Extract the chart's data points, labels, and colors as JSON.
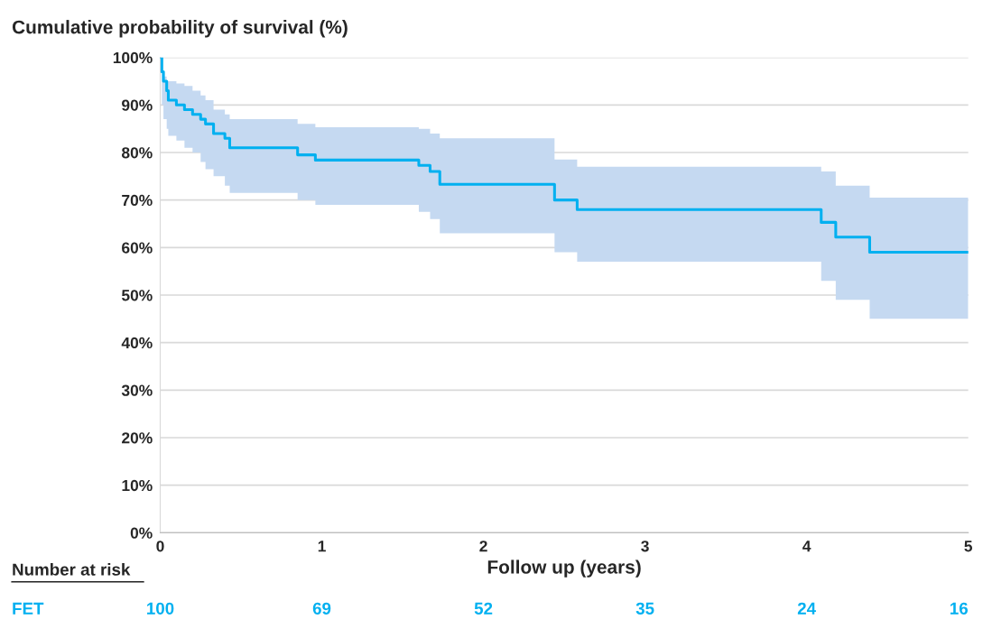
{
  "chart_data": {
    "type": "step",
    "title": "Cumulative probability of survival (%)",
    "xlabel": "Follow up (years)",
    "series": [
      {
        "color": "#00b0f0",
        "x": [
          0,
          0.01,
          0.02,
          0.04,
          0.05,
          0.1,
          0.15,
          0.2,
          0.25,
          0.28,
          0.33,
          0.4,
          0.43,
          0.85,
          0.96,
          1.6,
          1.67,
          1.73,
          2.44,
          2.58,
          4.09,
          4.18,
          4.39,
          5
        ],
        "values": [
          100,
          97,
          95,
          93,
          91,
          90,
          89,
          88,
          87,
          86,
          84,
          83,
          81,
          79.5,
          78.4,
          77.3,
          76,
          73.3,
          70,
          68,
          65.3,
          62.2,
          59,
          59
        ],
        "upper": [
          100,
          97,
          96,
          95,
          95,
          94.5,
          94,
          93,
          92,
          91,
          89,
          88,
          87,
          86,
          85.3,
          85,
          84,
          83,
          78.5,
          77,
          76,
          73,
          70.5,
          70.5
        ],
        "lower": [
          100,
          90,
          87,
          85,
          83.5,
          82.5,
          81,
          80,
          78,
          76.5,
          75,
          73,
          71.5,
          70,
          69,
          67.5,
          66,
          63,
          59,
          57,
          53,
          49,
          45,
          45
        ]
      }
    ],
    "xlim": [
      0,
      5
    ],
    "xticks": [
      0,
      1,
      2,
      3,
      4,
      5
    ],
    "ylim": [
      0,
      100
    ],
    "yticks": [
      {
        "value": 0,
        "label": "0%"
      },
      {
        "value": 10,
        "label": "10%"
      },
      {
        "value": 20,
        "label": "20%"
      },
      {
        "value": 30,
        "label": "30%"
      },
      {
        "value": 40,
        "label": "40%"
      },
      {
        "value": 50,
        "label": "50%"
      },
      {
        "value": 60,
        "label": "60%"
      },
      {
        "value": 70,
        "label": "70%"
      },
      {
        "value": 80,
        "label": "80%"
      },
      {
        "value": 90,
        "label": "90%"
      },
      {
        "value": 100,
        "label": "100%"
      }
    ],
    "grid": "y",
    "line_style": "solid",
    "marker": "none",
    "annotations": [
      "Number at risk",
      "FET",
      "100",
      "69",
      "52",
      "35",
      "24",
      "16"
    ]
  }
}
